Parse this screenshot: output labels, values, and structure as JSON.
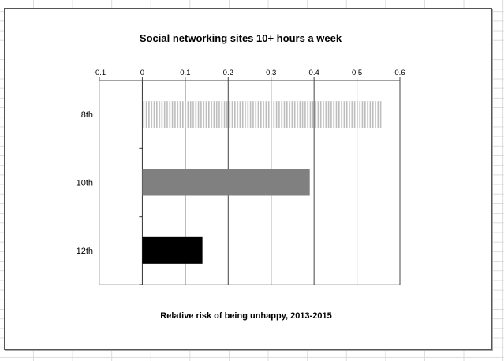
{
  "chart_data": {
    "type": "bar",
    "orientation": "horizontal",
    "title": "Social networking sites 10+ hours a week",
    "xlabel": "Relative risk of being unhappy, 2013-2015",
    "ylabel": "",
    "categories": [
      "8th",
      "10th",
      "12th"
    ],
    "values": [
      0.56,
      0.39,
      0.14
    ],
    "bar_colors": [
      "#bdbdbd",
      "#808080",
      "#000000"
    ],
    "bar_patterns": [
      "vertical-stripes",
      "solid",
      "solid"
    ],
    "xlim": [
      -0.1,
      0.6
    ],
    "xticks": [
      "-0.1",
      "0",
      "0.1",
      "0.2",
      "0.3",
      "0.4",
      "0.5",
      "0.6"
    ],
    "xtick_values": [
      -0.1,
      0,
      0.1,
      0.2,
      0.3,
      0.4,
      0.5,
      0.6
    ],
    "xaxis_position": "top",
    "grid": "vertical",
    "legend": "none"
  }
}
